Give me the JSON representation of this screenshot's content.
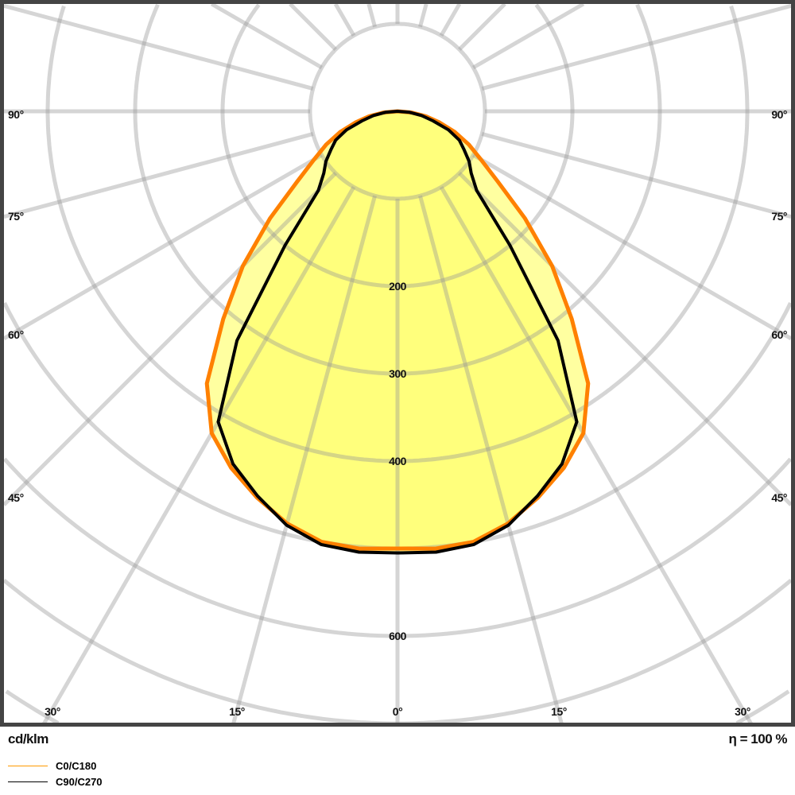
{
  "chart_data": {
    "type": "polar",
    "unit_label": "cd/klm",
    "efficiency_label": "η = 100 %",
    "radial_ticks": [
      100,
      200,
      300,
      400,
      500,
      600,
      700,
      800
    ],
    "radial_tick_labels": [
      "200",
      "300",
      "400",
      "600"
    ],
    "radial_tick_label_values": [
      200,
      300,
      400,
      600
    ],
    "angle_step_deg": 15,
    "angle_labels_side": [
      "90°",
      "75°",
      "60°",
      "45°"
    ],
    "angle_labels_bottom": [
      "30°",
      "15°",
      "0°",
      "15°",
      "30°"
    ],
    "angles_deg": [
      0,
      5,
      10,
      15,
      20,
      25,
      30,
      35,
      40,
      45,
      50,
      55,
      60,
      65,
      70,
      75,
      80,
      85,
      90
    ],
    "series": [
      {
        "name": "C0/C180",
        "color": "#ff8000",
        "fill": "#ffff80",
        "values": [
          500,
          502,
          500,
          488,
          470,
          450,
          425,
          380,
          310,
          250,
          190,
          140,
          110,
          90,
          70,
          50,
          33,
          16,
          0
        ]
      },
      {
        "name": "C90/C270",
        "color": "#000000",
        "fill": "#ffff70",
        "values": [
          505,
          506,
          503,
          490,
          468,
          445,
          410,
          320,
          200,
          128,
          110,
          100,
          88,
          78,
          62,
          42,
          28,
          14,
          0
        ]
      }
    ],
    "grid": true,
    "legend_position": "bottom-left"
  }
}
